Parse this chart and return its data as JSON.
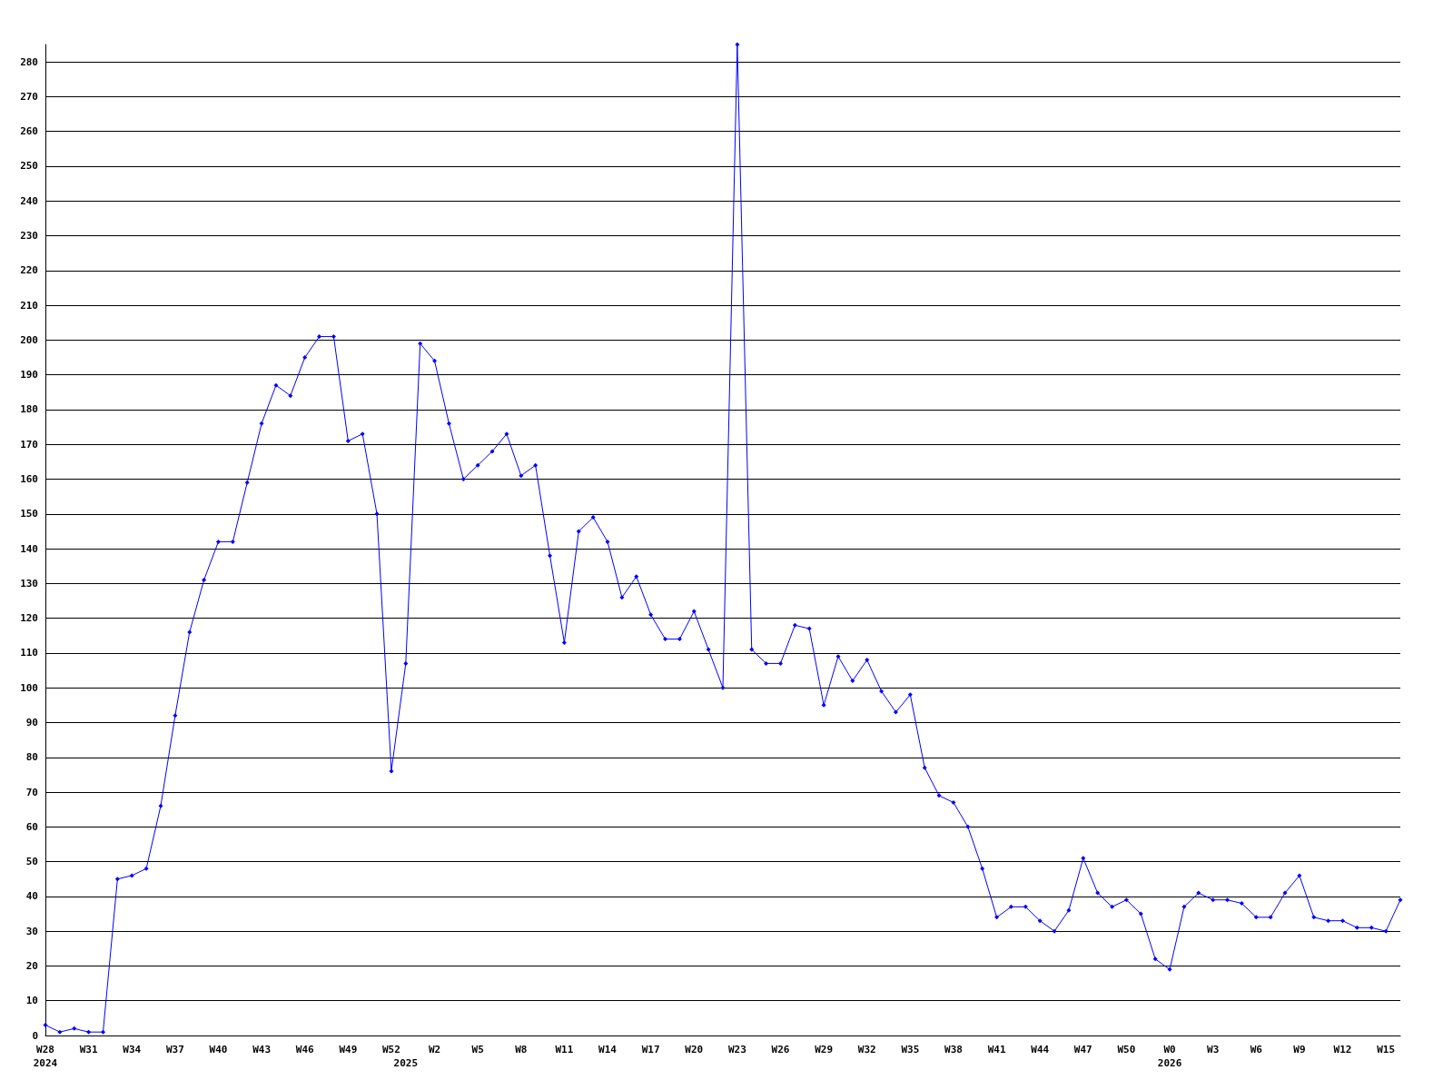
{
  "chart_data": {
    "type": "line",
    "color": "#0000ff",
    "marker": "diamond",
    "grid": "y",
    "line_style": "solid",
    "categories": [
      "W28\n2024",
      null,
      null,
      "W31",
      null,
      null,
      "W34",
      null,
      null,
      "W37",
      null,
      null,
      "W40",
      null,
      null,
      "W43",
      null,
      null,
      "W46",
      null,
      null,
      "W49",
      null,
      null,
      "W52",
      "\n2025",
      null,
      "W2",
      null,
      null,
      "W5",
      null,
      null,
      "W8",
      null,
      null,
      "W11",
      null,
      null,
      "W14",
      null,
      null,
      "W17",
      null,
      null,
      "W20",
      null,
      null,
      "W23",
      null,
      null,
      "W26",
      null,
      null,
      "W29",
      null,
      null,
      "W32",
      null,
      null,
      "W35",
      null,
      null,
      "W38",
      null,
      null,
      "W41",
      null,
      null,
      "W44",
      null,
      null,
      "W47",
      null,
      null,
      "W50",
      null,
      null,
      "W0\n2026",
      null,
      null,
      "W3",
      null,
      null,
      "W6",
      null,
      null,
      "W9",
      null,
      null,
      "W12",
      null,
      null,
      "W15",
      null
    ],
    "values": [
      3,
      1,
      2,
      1,
      1,
      45,
      46,
      48,
      66,
      92,
      116,
      131,
      142,
      142,
      159,
      176,
      187,
      184,
      195,
      201,
      201,
      171,
      173,
      150,
      76,
      107,
      199,
      194,
      176,
      160,
      164,
      168,
      173,
      161,
      164,
      138,
      113,
      145,
      149,
      142,
      126,
      132,
      121,
      114,
      114,
      122,
      111,
      100,
      285,
      111,
      107,
      107,
      118,
      117,
      95,
      109,
      102,
      108,
      99,
      93,
      98,
      77,
      69,
      67,
      60,
      48,
      34,
      37,
      37,
      33,
      30,
      36,
      51,
      41,
      37,
      39,
      35,
      22,
      19,
      37,
      41,
      39,
      39,
      38,
      34,
      34,
      41,
      46,
      34,
      33,
      33,
      31,
      31,
      30,
      39
    ],
    "ylim": [
      0,
      285
    ],
    "yticks": [
      0,
      10,
      20,
      30,
      40,
      50,
      60,
      70,
      80,
      90,
      100,
      110,
      120,
      130,
      140,
      150,
      160,
      170,
      180,
      190,
      200,
      210,
      220,
      230,
      240,
      250,
      260,
      270,
      280
    ]
  }
}
